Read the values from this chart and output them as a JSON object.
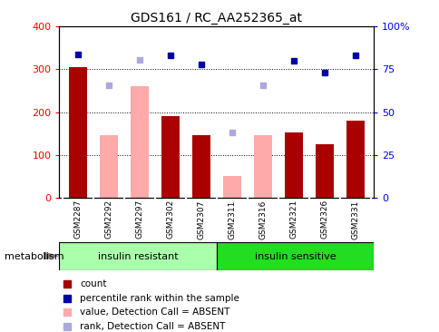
{
  "title": "GDS161 / RC_AA252365_at",
  "categories": [
    "GSM2287",
    "GSM2292",
    "GSM2297",
    "GSM2302",
    "GSM2307",
    "GSM2311",
    "GSM2316",
    "GSM2321",
    "GSM2326",
    "GSM2331"
  ],
  "count_values": [
    305,
    null,
    null,
    190,
    145,
    null,
    null,
    152,
    125,
    180
  ],
  "pink_bar_values": [
    null,
    145,
    260,
    null,
    null,
    50,
    145,
    null,
    null,
    null
  ],
  "blue_square_values": [
    335,
    null,
    null,
    332,
    312,
    null,
    null,
    320,
    292,
    332
  ],
  "lavender_square_values": [
    null,
    262,
    322,
    null,
    null,
    152,
    262,
    null,
    null,
    null
  ],
  "ylim": [
    0,
    400
  ],
  "yticks": [
    0,
    100,
    200,
    300,
    400
  ],
  "ytick_labels": [
    "0",
    "100",
    "200",
    "300",
    "400"
  ],
  "y2ticks": [
    0,
    25,
    50,
    75,
    100
  ],
  "y2tick_labels": [
    "0",
    "25",
    "50",
    "75",
    "100%"
  ],
  "grid_values": [
    100,
    200,
    300
  ],
  "bar_color_red": "#aa0000",
  "bar_color_pink": "#ffaaaa",
  "square_color_blue": "#0000aa",
  "square_color_lavender": "#aaaadd",
  "label_area_bg": "#cccccc",
  "resistant_bg": "#aaffaa",
  "sensitive_bg": "#22dd22",
  "legend_items": [
    "count",
    "percentile rank within the sample",
    "value, Detection Call = ABSENT",
    "rank, Detection Call = ABSENT"
  ]
}
